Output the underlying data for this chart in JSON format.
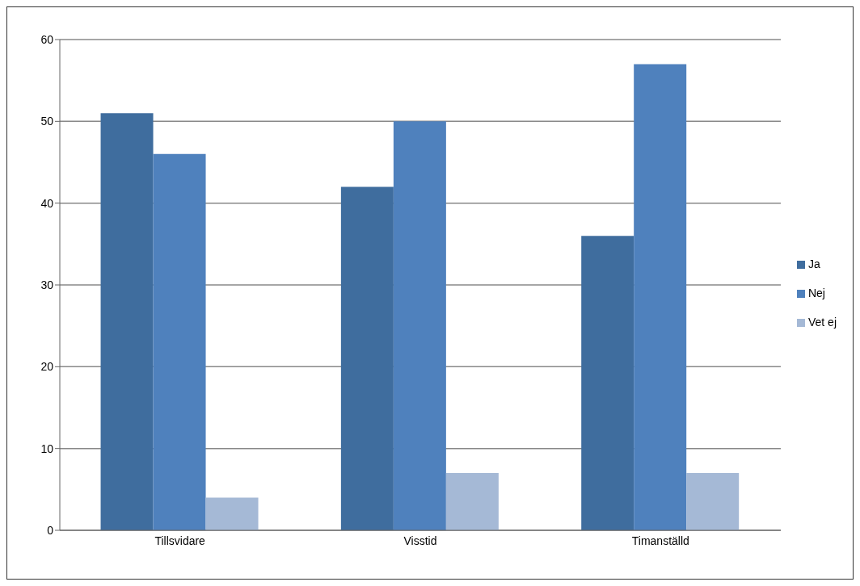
{
  "chart_data": {
    "type": "bar",
    "categories": [
      "Tillsvidare",
      "Visstid",
      "Timanställd"
    ],
    "series": [
      {
        "name": "Ja",
        "color": "#3f6d9e",
        "values": [
          51,
          42,
          36
        ]
      },
      {
        "name": "Nej",
        "color": "#4f81bd",
        "values": [
          46,
          50,
          57
        ]
      },
      {
        "name": "Vet ej",
        "color": "#a5b9d6",
        "values": [
          4,
          7,
          7
        ]
      }
    ],
    "ylim": [
      0,
      60
    ],
    "yticks": [
      0,
      10,
      20,
      30,
      40,
      50,
      60
    ],
    "grid": "y",
    "legend": "right"
  }
}
